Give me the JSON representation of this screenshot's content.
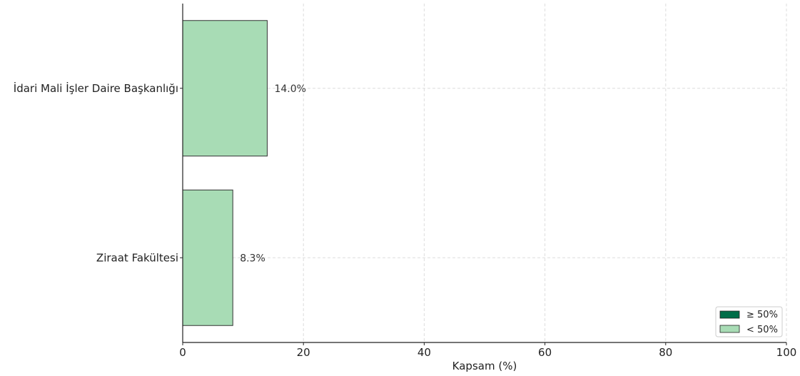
{
  "chart_data": {
    "type": "bar",
    "orientation": "horizontal",
    "categories": [
      "İdari Mali İşler Daire Başkanlığı",
      "Ziraat Fakültesi"
    ],
    "values": [
      14.0,
      8.3
    ],
    "data_labels": [
      "14.0%",
      "8.3%"
    ],
    "title": "",
    "xlabel": "Kapsam (%)",
    "ylabel": "",
    "xlim": [
      0,
      100
    ],
    "xticks": [
      0,
      20,
      40,
      60,
      80,
      100
    ],
    "grid": true,
    "legend_position": "bottom-right",
    "legend": [
      {
        "label": "≥ 50%",
        "color": "#006d48"
      },
      {
        "label": "< 50%",
        "color": "#a8dcb5"
      }
    ],
    "bar_colors": [
      "#a8dcb5",
      "#a8dcb5"
    ]
  }
}
